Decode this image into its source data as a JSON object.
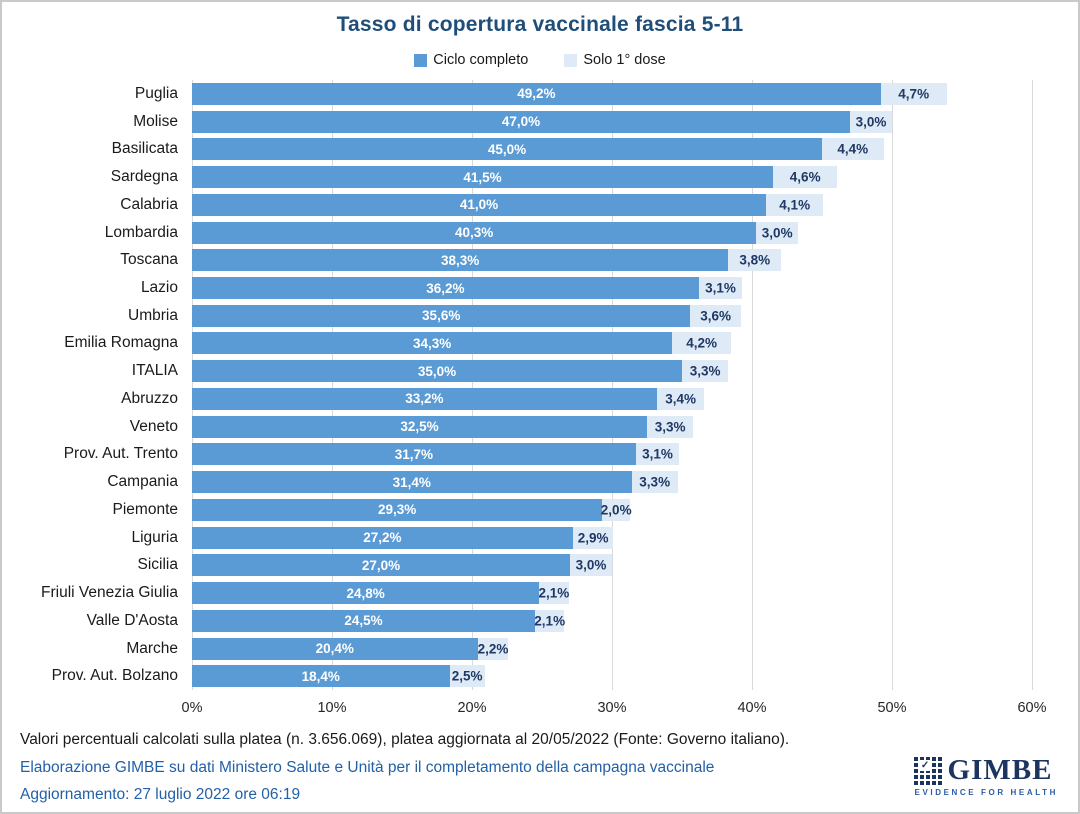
{
  "title": "Tasso di copertura vaccinale fascia 5-11",
  "legend": [
    {
      "label": "Ciclo completo",
      "color": "#5B9BD5"
    },
    {
      "label": "Solo 1° dose",
      "color": "#DEEAF6"
    }
  ],
  "chart_data": {
    "type": "bar",
    "orientation": "horizontal",
    "title": "Tasso di copertura vaccinale fascia 5-11",
    "categories": [
      "Puglia",
      "Molise",
      "Basilicata",
      "Sardegna",
      "Calabria",
      "Lombardia",
      "Toscana",
      "Lazio",
      "Umbria",
      "Emilia Romagna",
      "ITALIA",
      "Abruzzo",
      "Veneto",
      "Prov. Aut. Trento",
      "Campania",
      "Piemonte",
      "Liguria",
      "Sicilia",
      "Friuli Venezia Giulia",
      "Valle D'Aosta",
      "Marche",
      "Prov. Aut. Bolzano"
    ],
    "series": [
      {
        "name": "Ciclo completo",
        "color": "#5B9BD5",
        "label_color": "#ffffff",
        "values": [
          49.2,
          47.0,
          45.0,
          41.5,
          41.0,
          40.3,
          38.3,
          36.2,
          35.6,
          34.3,
          35.0,
          33.2,
          32.5,
          31.7,
          31.4,
          29.3,
          27.2,
          27.0,
          24.8,
          24.5,
          20.4,
          18.4
        ],
        "labels": [
          "49,2%",
          "47,0%",
          "45,0%",
          "41,5%",
          "41,0%",
          "40,3%",
          "38,3%",
          "36,2%",
          "35,6%",
          "34,3%",
          "35,0%",
          "33,2%",
          "32,5%",
          "31,7%",
          "31,4%",
          "29,3%",
          "27,2%",
          "27,0%",
          "24,8%",
          "24,5%",
          "20,4%",
          "18,4%"
        ]
      },
      {
        "name": "Solo 1° dose",
        "color": "#DEEAF6",
        "label_color": "#1F3864",
        "values": [
          4.7,
          3.0,
          4.4,
          4.6,
          4.1,
          3.0,
          3.8,
          3.1,
          3.6,
          4.2,
          3.3,
          3.4,
          3.3,
          3.1,
          3.3,
          2.0,
          2.9,
          3.0,
          2.1,
          2.1,
          2.2,
          2.5
        ],
        "labels": [
          "4,7%",
          "3,0%",
          "4,4%",
          "4,6%",
          "4,1%",
          "3,0%",
          "3,8%",
          "3,1%",
          "3,6%",
          "4,2%",
          "3,3%",
          "3,4%",
          "3,3%",
          "3,1%",
          "3,3%",
          "2,0%",
          "2,9%",
          "3,0%",
          "2,1%",
          "2,1%",
          "2,2%",
          "2,5%"
        ]
      }
    ],
    "xlim": [
      0,
      60
    ],
    "x_ticks": [
      "0%",
      "10%",
      "20%",
      "30%",
      "40%",
      "50%",
      "60%"
    ],
    "grid": true,
    "legend_position": "top",
    "bar_label_format": "italian-percent"
  },
  "footer": {
    "line1": "Valori percentuali calcolati sulla platea (n. 3.656.069), platea aggiornata al 20/05/2022 (Fonte: Governo italiano).",
    "line2": "Elaborazione GIMBE su dati Ministero Salute e Unità per il completamento della campagna vaccinale",
    "line3": "Aggiornamento: 27 luglio 2022 ore 06:19"
  },
  "logo": {
    "name": "GIMBE",
    "tagline": "EVIDENCE FOR HEALTH"
  },
  "colors": {
    "title": "#1F4E79",
    "bar_complete": "#5B9BD5",
    "bar_first_dose": "#DEEAF6",
    "value_label_dark": "#1F3864",
    "footer_blue": "#2360A7",
    "gridline": "#D9D9D9"
  }
}
